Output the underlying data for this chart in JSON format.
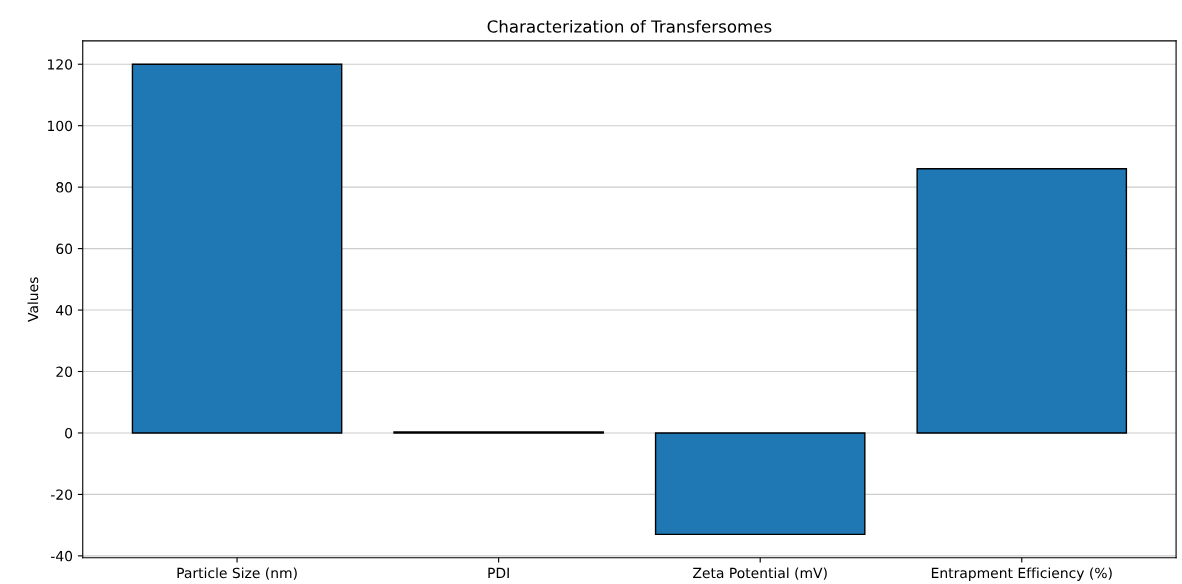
{
  "chart_data": {
    "type": "bar",
    "title": "Characterization of Transfersomes",
    "ylabel": "Values",
    "categories": [
      "Particle Size (nm)",
      "PDI",
      "Zeta Potential (mV)",
      "Entrapment Efficiency (%)"
    ],
    "values": [
      120,
      0.3,
      -33,
      86
    ],
    "color": "#1f77b4",
    "ylim": [
      -40.6,
      127.6
    ],
    "yticks": [
      -40,
      -20,
      0,
      20,
      40,
      60,
      80,
      100,
      120
    ],
    "grid": "y"
  }
}
